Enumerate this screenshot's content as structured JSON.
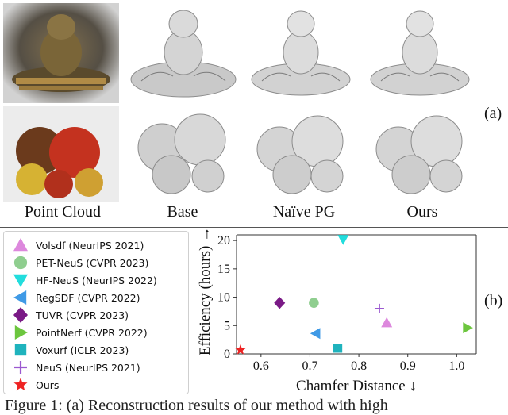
{
  "figure": {
    "column_labels": [
      "Point Cloud",
      "Base",
      "Naïve PG",
      "Ours"
    ],
    "panel_a_tag": "(a)",
    "panel_b_tag": "(b)",
    "caption_fragment": "Figure 1:  (a) Reconstruction results of our method with high"
  },
  "chart_data": {
    "type": "scatter",
    "title": "",
    "xlabel": "Chamfer Distance ↓",
    "ylabel": "Efficiency (hours) →",
    "xlim": [
      0.55,
      1.04
    ],
    "ylim": [
      0,
      21
    ],
    "xticks": [
      "0.6",
      "0.7",
      "0.8",
      "0.9",
      "1.0"
    ],
    "yticks": [
      "0",
      "5",
      "10",
      "15",
      "20"
    ],
    "grid": false,
    "legend_position": "left (outside plot)",
    "series": [
      {
        "name": "Volsdf (NeurIPS 2021)",
        "marker": "triangle-up",
        "color": "#dd88dd",
        "x": 0.857,
        "y": 5.5
      },
      {
        "name": "PET-NeuS (CVPR 2023)",
        "marker": "circle",
        "color": "#8fce8f",
        "x": 0.708,
        "y": 9.0
      },
      {
        "name": "HF-NeuS (NeurIPS 2022)",
        "marker": "triangle-down",
        "color": "#22dddd",
        "x": 0.768,
        "y": 20.2
      },
      {
        "name": "RegSDF (CVPR 2022)",
        "marker": "triangle-left",
        "color": "#3f9ae6",
        "x": 0.712,
        "y": 3.6
      },
      {
        "name": "TUVR (CVPR 2023)",
        "marker": "diamond",
        "color": "#7a1a86",
        "x": 0.638,
        "y": 9.0
      },
      {
        "name": "PointNerf (CVPR 2022)",
        "marker": "triangle-right",
        "color": "#6cc63e",
        "x": 1.022,
        "y": 4.6
      },
      {
        "name": "Voxurf (ICLR 2023)",
        "marker": "square",
        "color": "#1fb3bd",
        "x": 0.757,
        "y": 1.0
      },
      {
        "name": "NeuS (NeurIPS 2021)",
        "marker": "plus",
        "color": "#9b59d0",
        "x": 0.842,
        "y": 8.0
      },
      {
        "name": "Ours",
        "marker": "star",
        "color": "#ee2222",
        "x": 0.558,
        "y": 0.7
      }
    ]
  }
}
